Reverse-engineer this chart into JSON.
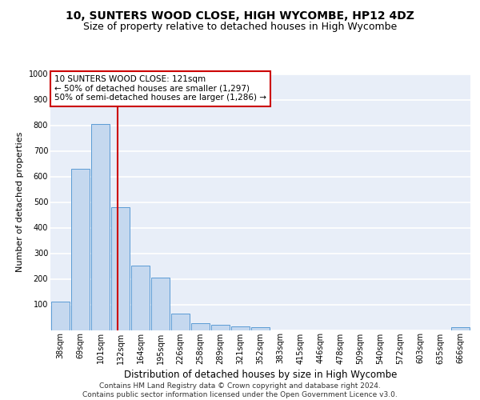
{
  "title": "10, SUNTERS WOOD CLOSE, HIGH WYCOMBE, HP12 4DZ",
  "subtitle": "Size of property relative to detached houses in High Wycombe",
  "xlabel": "Distribution of detached houses by size in High Wycombe",
  "ylabel": "Number of detached properties",
  "categories": [
    "38sqm",
    "69sqm",
    "101sqm",
    "132sqm",
    "164sqm",
    "195sqm",
    "226sqm",
    "258sqm",
    "289sqm",
    "321sqm",
    "352sqm",
    "383sqm",
    "415sqm",
    "446sqm",
    "478sqm",
    "509sqm",
    "540sqm",
    "572sqm",
    "603sqm",
    "635sqm",
    "666sqm"
  ],
  "values": [
    110,
    630,
    805,
    480,
    252,
    205,
    63,
    27,
    20,
    15,
    10,
    0,
    0,
    0,
    0,
    0,
    0,
    0,
    0,
    0,
    10
  ],
  "bar_color": "#c5d8ef",
  "bar_edge_color": "#5b9bd5",
  "vline_x": 2.85,
  "vline_color": "#cc0000",
  "annotation_text": "10 SUNTERS WOOD CLOSE: 121sqm\n← 50% of detached houses are smaller (1,297)\n50% of semi-detached houses are larger (1,286) →",
  "annotation_box_facecolor": "#ffffff",
  "annotation_box_edgecolor": "#cc0000",
  "ylim": [
    0,
    1000
  ],
  "yticks": [
    0,
    100,
    200,
    300,
    400,
    500,
    600,
    700,
    800,
    900,
    1000
  ],
  "bg_color": "#e8eef8",
  "grid_color": "#ffffff",
  "footer": "Contains HM Land Registry data © Crown copyright and database right 2024.\nContains public sector information licensed under the Open Government Licence v3.0.",
  "title_fontsize": 10,
  "subtitle_fontsize": 9,
  "xlabel_fontsize": 8.5,
  "ylabel_fontsize": 8,
  "tick_fontsize": 7,
  "annotation_fontsize": 7.5,
  "footer_fontsize": 6.5
}
